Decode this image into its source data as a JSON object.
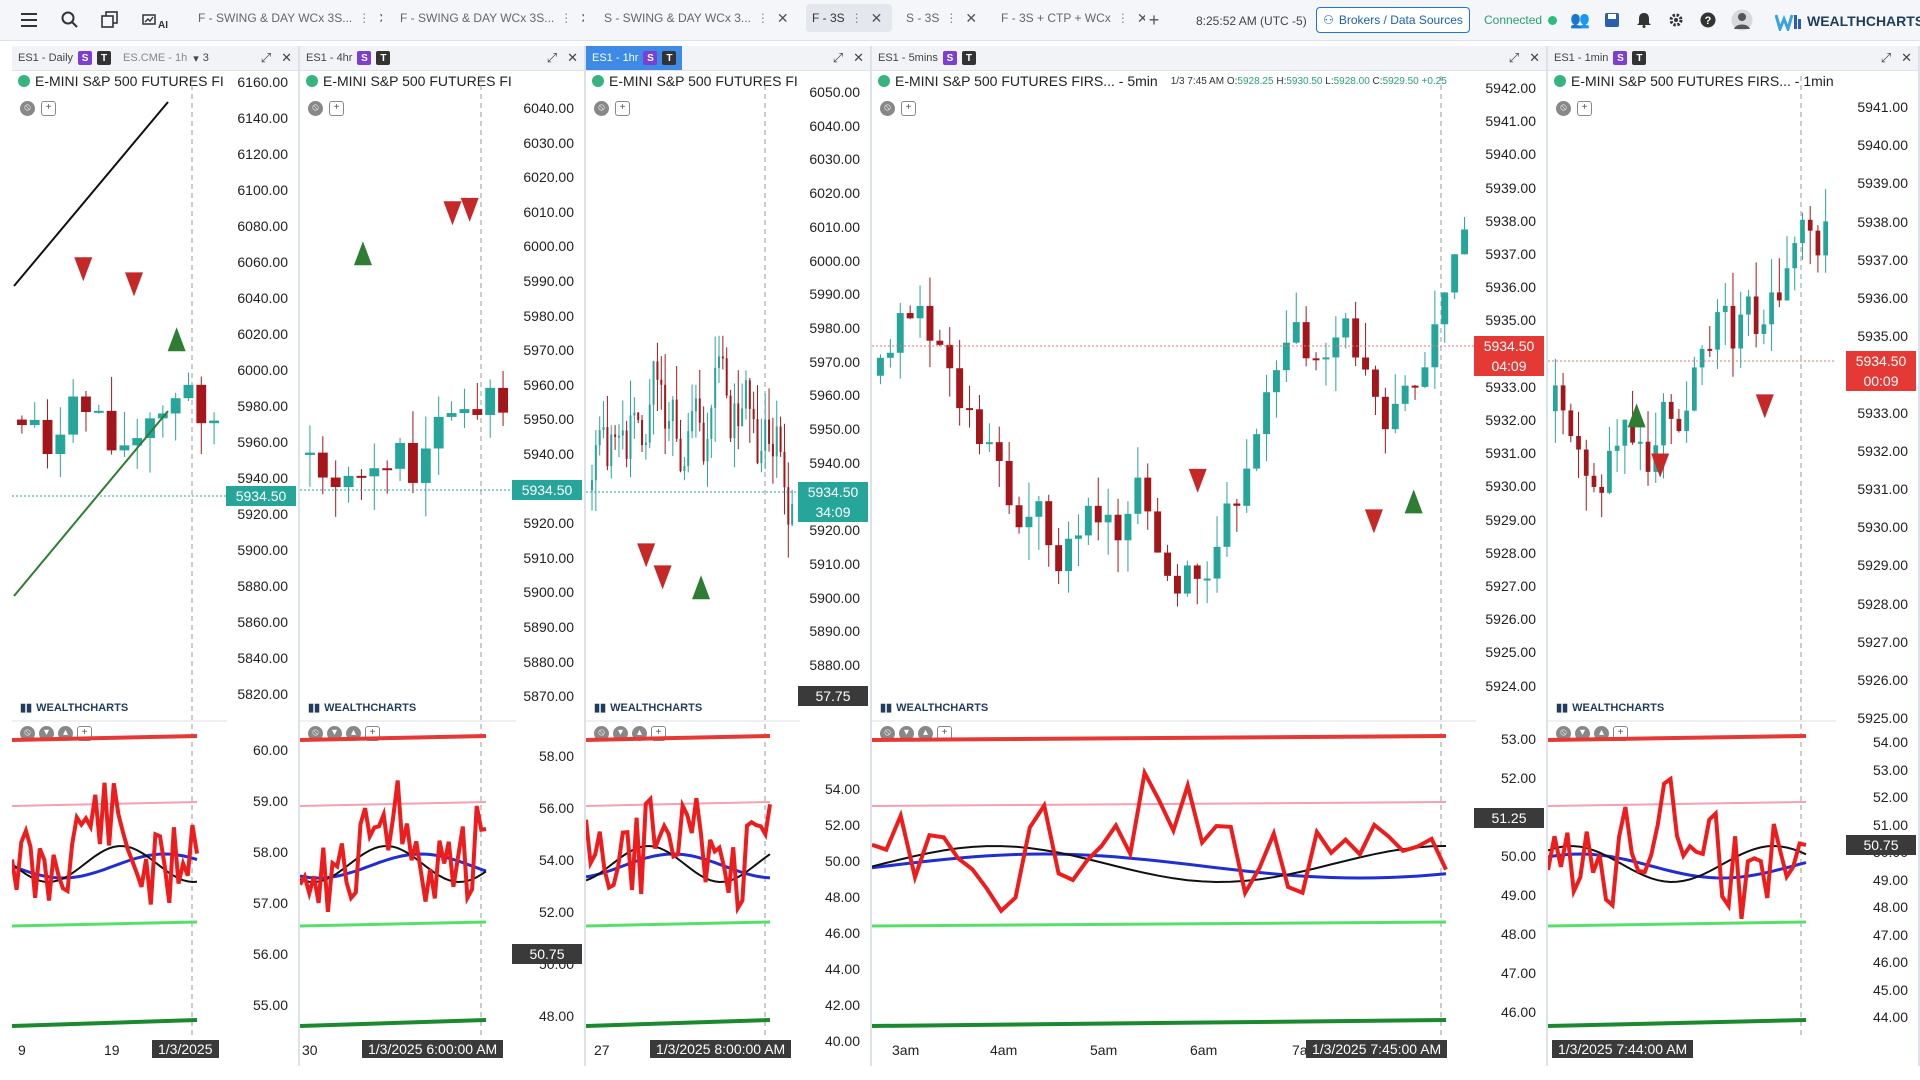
{
  "topbar": {
    "ai_label": "AI",
    "tabs": [
      {
        "label": "F - SWING & DAY WCx 3S...",
        "active": false
      },
      {
        "label": "F - SWING & DAY WCx 3S...",
        "active": false
      },
      {
        "label": "S - SWING & DAY WCx 3...",
        "active": false
      },
      {
        "label": "F - 3S",
        "active": true
      },
      {
        "label": "S - 3S",
        "active": false
      },
      {
        "label": "F - 3S + CTP + WCx",
        "active": false
      }
    ],
    "clock": "8:25:52 AM  (UTC -5)",
    "brokers_label": "Brokers / Data Sources",
    "connection_status": "Connected",
    "brand": "WEALTHCHARTS"
  },
  "watermark": "WEALTHCHARTS",
  "panels": [
    {
      "symbol_tab": "ES1 - Daily",
      "extra_tab": "ES.CME - 1h",
      "extra_count": "3",
      "title": "E-MINI S&P 500 FUTURES FI",
      "price_labels": [
        "6160.00",
        "6140.00",
        "6120.00",
        "6100.00",
        "6080.00",
        "6060.00",
        "6040.00",
        "6020.00",
        "6000.00",
        "5980.00",
        "5960.00",
        "5940.00",
        "5920.00",
        "5900.00",
        "5880.00",
        "5860.00",
        "5840.00",
        "5820.00"
      ],
      "last_price": "5934.50",
      "ind_labels": [
        "60.00",
        "59.00",
        "58.00",
        "57.00",
        "56.00",
        "55.00"
      ],
      "x_labels": [
        "9",
        "19"
      ],
      "date_label": "1/3/2025"
    },
    {
      "symbol_tab": "ES1 - 4hr",
      "title": "E-MINI S&P 500 FUTURES FI",
      "price_labels": [
        "6040.00",
        "6030.00",
        "6020.00",
        "6010.00",
        "6000.00",
        "5990.00",
        "5980.00",
        "5970.00",
        "5960.00",
        "5950.00",
        "5940.00",
        "5930.00",
        "5920.00",
        "5910.00",
        "5900.00",
        "5890.00",
        "5880.00",
        "5870.00"
      ],
      "last_price": "5934.50",
      "ind_labels": [
        "58.00",
        "56.00",
        "54.00",
        "52.00",
        "50.00",
        "48.00"
      ],
      "ind_cross": "50.75",
      "x_labels": [
        "30"
      ],
      "date_label": "1/3/2025 6:00:00 AM"
    },
    {
      "symbol_tab": "ES1 - 1hr",
      "title": "E-MINI S&P 500 FUTURES FI",
      "price_labels": [
        "6050.00",
        "6040.00",
        "6030.00",
        "6020.00",
        "6010.00",
        "6000.00",
        "5990.00",
        "5980.00",
        "5970.00",
        "5960.00",
        "5950.00",
        "5940.00",
        "5930.00",
        "5920.00",
        "5910.00",
        "5900.00",
        "5890.00",
        "5880.00",
        "5870.00"
      ],
      "last_price": "5934.50",
      "countdown": "34:09",
      "price_cross": "57.75",
      "ind_labels": [
        "54.00",
        "52.00",
        "50.00",
        "48.00",
        "46.00",
        "44.00",
        "42.00",
        "40.00"
      ],
      "x_labels": [
        "27"
      ],
      "date_label": "1/3/2025 8:00:00 AM"
    },
    {
      "symbol_tab": "ES1 - 5mins",
      "title": "E-MINI S&P 500 FUTURES FIRS... - 5min",
      "ohlc_time": "1/3 7:45 AM",
      "ohlc_o": "5928.25",
      "ohlc_h": "5930.50",
      "ohlc_l": "5928.00",
      "ohlc_c": "5929.50",
      "ohlc_chg": "+0.25",
      "price_labels": [
        "5942.00",
        "5941.00",
        "5940.00",
        "5939.00",
        "5938.00",
        "5937.00",
        "5936.00",
        "5935.00",
        "5934.00",
        "5933.00",
        "5932.00",
        "5931.00",
        "5930.00",
        "5929.00",
        "5928.00",
        "5927.00",
        "5926.00",
        "5925.00",
        "5924.00"
      ],
      "last_price": "5934.50",
      "countdown": "04:09",
      "ind_labels": [
        "53.00",
        "52.00",
        "51.00",
        "50.00",
        "49.00",
        "48.00",
        "47.00",
        "46.00"
      ],
      "ind_cross": "51.25",
      "x_labels": [
        "3am",
        "4am",
        "5am",
        "6am",
        "7a"
      ],
      "date_label": "1/3/2025 7:45:00 AM"
    },
    {
      "symbol_tab": "ES1 - 1min",
      "title": "E-MINI S&P 500 FUTURES FIRS... - 1min",
      "price_labels": [
        "5941.00",
        "5940.00",
        "5939.00",
        "5938.00",
        "5937.00",
        "5936.00",
        "5935.00",
        "5934.00",
        "5933.00",
        "5932.00",
        "5931.00",
        "5930.00",
        "5929.00",
        "5928.00",
        "5927.00",
        "5926.00",
        "5925.00"
      ],
      "last_price": "5934.50",
      "countdown": "00:09",
      "ind_labels": [
        "54.00",
        "53.00",
        "52.00",
        "51.00",
        "50.00",
        "49.00",
        "48.00",
        "47.00",
        "46.00",
        "45.00",
        "44.00"
      ],
      "ind_cross": "50.75",
      "date_label": "1/3/2025 7:44:00 AM"
    }
  ]
}
